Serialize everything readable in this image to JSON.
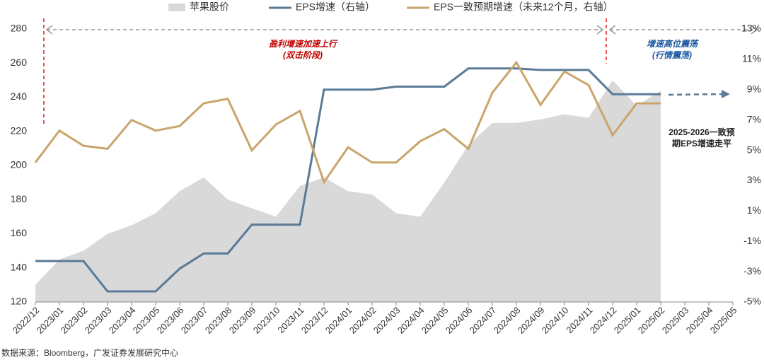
{
  "chart_data": {
    "type": "line",
    "categories": [
      "2022/12",
      "2023/01",
      "2023/02",
      "2023/03",
      "2023/04",
      "2023/05",
      "2023/06",
      "2023/07",
      "2023/08",
      "2023/09",
      "2023/10",
      "2023/11",
      "2023/12",
      "2024/01",
      "2024/02",
      "2024/03",
      "2024/04",
      "2024/05",
      "2024/06",
      "2024/07",
      "2024/08",
      "2024/09",
      "2024/10",
      "2024/11",
      "2024/12",
      "2025/01",
      "2025/02",
      "2025/03",
      "2025/04",
      "2025/05"
    ],
    "series": [
      {
        "name": "苹果股价",
        "type": "area",
        "color": "#d9d9d9",
        "values": [
          130,
          145,
          150,
          160,
          165,
          172,
          185,
          193,
          180,
          175,
          170,
          188,
          193,
          185,
          183,
          172,
          170,
          190,
          212,
          225,
          225,
          227,
          230,
          228,
          250,
          235,
          244,
          null,
          null,
          null
        ]
      },
      {
        "name": "EPS增速（右轴）",
        "type": "line",
        "axis": "y2",
        "color": "#5a7a96",
        "values": [
          -2.3,
          -2.3,
          -2.3,
          -4.3,
          -4.3,
          -4.3,
          -2.8,
          -1.8,
          -1.8,
          0.1,
          0.1,
          0.1,
          9.0,
          9.0,
          9.0,
          9.2,
          9.2,
          9.2,
          10.4,
          10.4,
          10.4,
          10.3,
          10.3,
          10.3,
          8.7,
          8.7,
          8.7,
          null,
          null,
          null
        ]
      },
      {
        "name": "EPS一致预期增速（未来12个月，右轴）",
        "type": "line",
        "axis": "y2",
        "color": "#c9a56b",
        "values": [
          4.2,
          6.3,
          5.3,
          5.1,
          7.0,
          6.3,
          6.6,
          8.1,
          8.4,
          5.0,
          6.7,
          7.6,
          2.9,
          5.2,
          4.2,
          4.2,
          5.6,
          6.4,
          5.1,
          8.8,
          10.8,
          8.0,
          10.2,
          9.3,
          6.0,
          8.1,
          8.1,
          null,
          null,
          null
        ]
      }
    ],
    "ylim": [
      120,
      280
    ],
    "yticks": [
      120,
      140,
      160,
      180,
      200,
      220,
      240,
      260,
      280
    ],
    "y2lim": [
      -5,
      13
    ],
    "y2ticks": [
      {
        "value": -5,
        "label": "-5%"
      },
      {
        "value": -3,
        "label": "-3%"
      },
      {
        "value": -1,
        "label": "-1%"
      },
      {
        "value": 1,
        "label": "1%"
      },
      {
        "value": 3,
        "label": "3%"
      },
      {
        "value": 5,
        "label": "5%"
      },
      {
        "value": 7,
        "label": "7%"
      },
      {
        "value": 9,
        "label": "9%"
      },
      {
        "value": 11,
        "label": "11%"
      },
      {
        "value": 13,
        "label": "13%"
      }
    ],
    "annotations": [
      "盈利增速加速上行",
      "(双击阶段)",
      "增速高位震荡",
      "(行情震荡)",
      "2025-2026一致预",
      "期EPS增速走平"
    ],
    "source": "数据来源：Bloomberg，广发证券发展研究中心"
  }
}
